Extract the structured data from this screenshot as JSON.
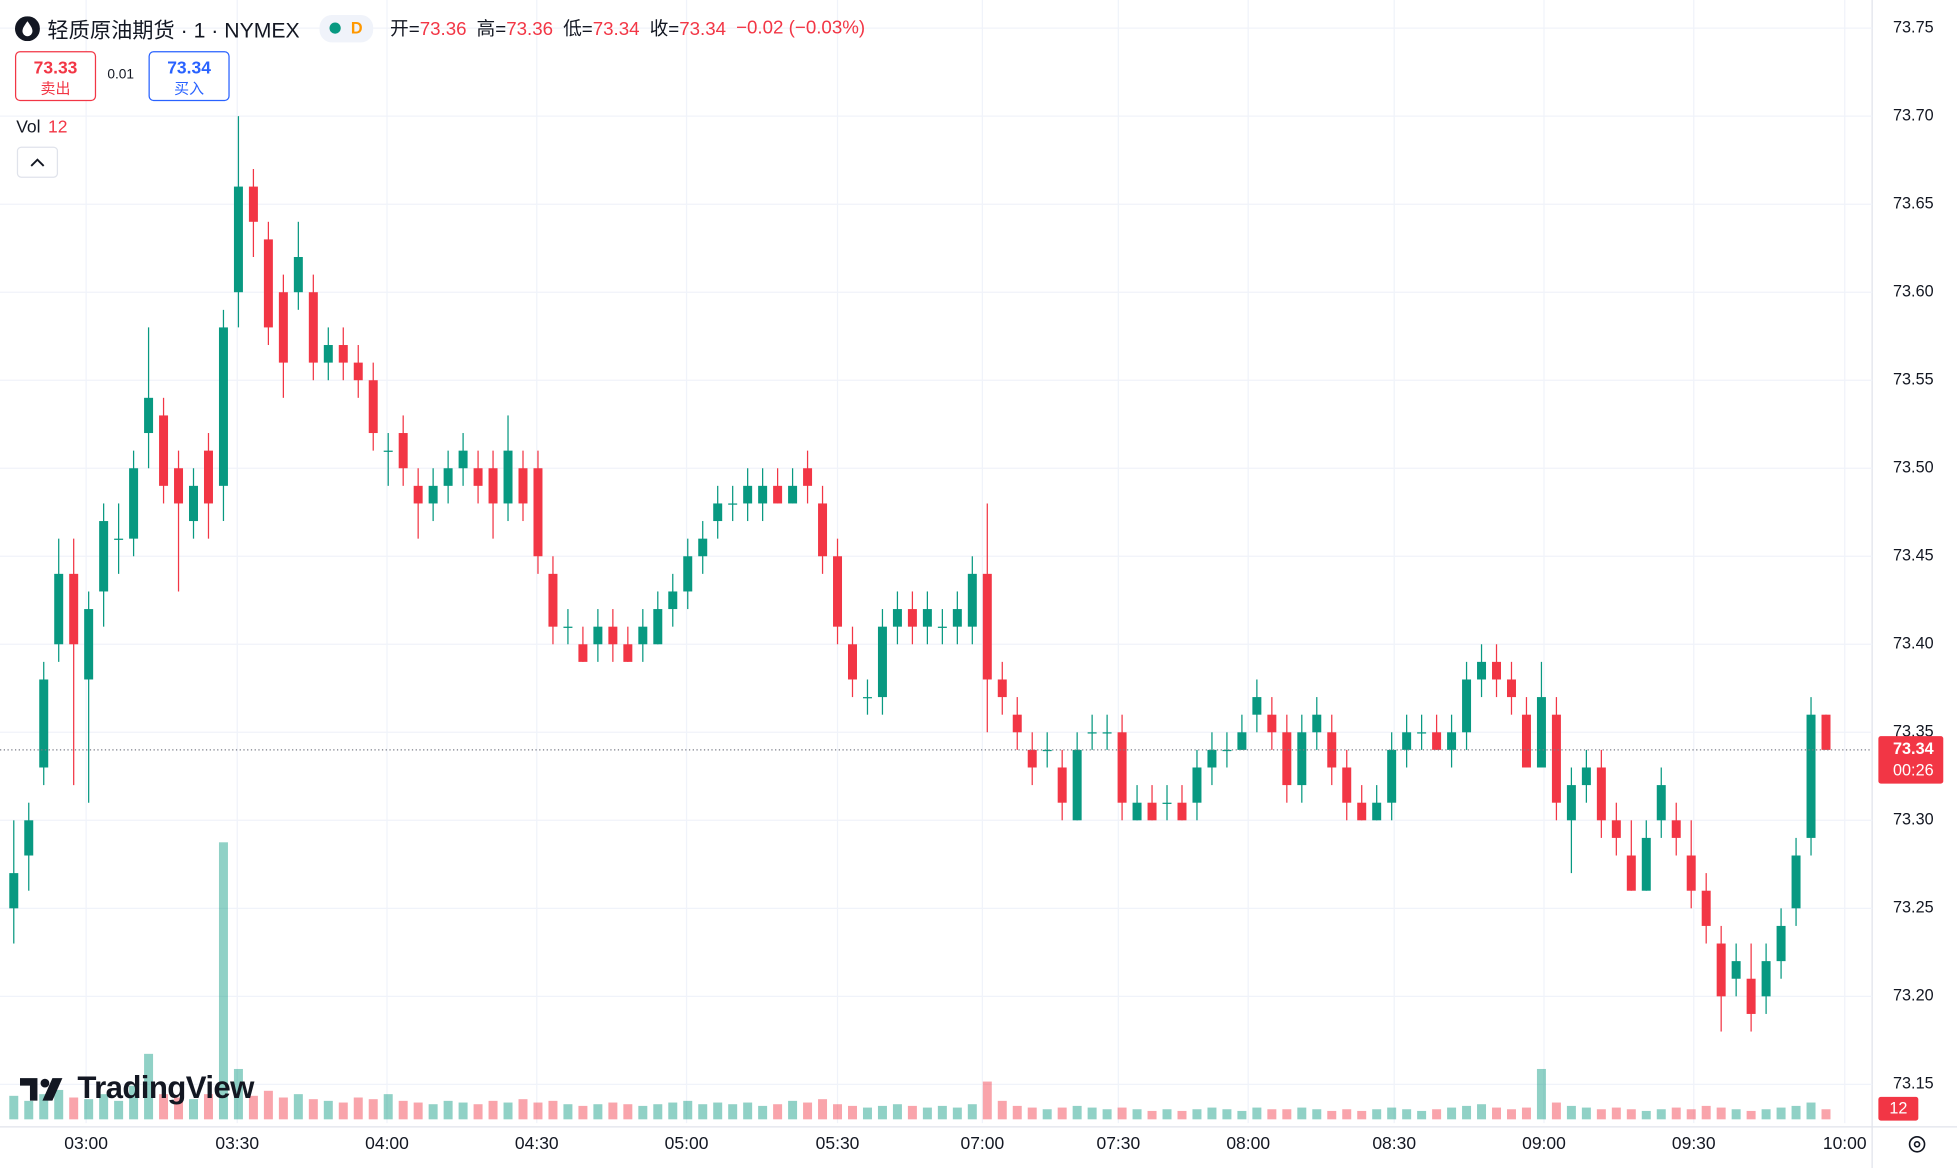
{
  "header": {
    "title": "轻质原油期货 · 1 · NYMEX",
    "session": "D",
    "ohlc_labels": [
      "开=",
      "高=",
      "低=",
      "收="
    ],
    "change": "−0.02 (−0.03%)",
    "bid": 73.33,
    "bid_label": "卖出",
    "spread": 0.01,
    "ask": 73.34,
    "ask_label": "买入",
    "vol_label": "Vol",
    "countdown": "00:26",
    "watermark": "TradingView"
  },
  "chart_data": {
    "type": "candlestick",
    "up_color": "#089981",
    "down_color": "#f23645",
    "open": [
      73.25,
      73.28,
      73.33,
      73.4,
      73.44,
      73.38,
      73.43,
      73.46,
      73.46,
      73.52,
      73.53,
      73.5,
      73.47,
      73.51,
      73.49,
      73.6,
      73.66,
      73.63,
      73.6,
      73.6,
      73.6,
      73.56,
      73.57,
      73.56,
      73.55,
      73.51,
      73.52,
      73.49,
      73.48,
      73.49,
      73.5,
      73.5,
      73.5,
      73.48,
      73.5,
      73.5,
      73.44,
      73.41,
      73.4,
      73.4,
      73.41,
      73.4,
      73.4,
      73.4,
      73.42,
      73.43,
      73.45,
      73.47,
      73.48,
      73.48,
      73.48,
      73.49,
      73.48,
      73.5,
      73.48,
      73.45,
      73.4,
      73.37,
      73.37,
      73.41,
      73.42,
      73.41,
      73.41,
      73.41,
      73.41,
      73.44,
      73.38,
      73.36,
      73.34,
      73.34,
      73.33,
      73.3,
      73.35,
      73.35,
      73.35,
      73.3,
      73.31,
      73.31,
      73.31,
      73.31,
      73.33,
      73.34,
      73.34,
      73.36,
      73.36,
      73.35,
      73.32,
      73.35,
      73.35,
      73.33,
      73.31,
      73.3,
      73.31,
      73.34,
      73.35,
      73.35,
      73.34,
      73.35,
      73.38,
      73.39,
      73.38,
      73.36,
      73.33,
      73.36,
      73.3,
      73.32,
      73.33,
      73.3,
      73.28,
      73.26,
      73.3,
      73.3,
      73.28,
      73.26,
      73.23,
      73.21,
      73.21,
      73.2,
      73.22,
      73.25,
      73.29,
      73.36
    ],
    "high": [
      73.3,
      73.31,
      73.39,
      73.46,
      73.46,
      73.43,
      73.48,
      73.48,
      73.51,
      73.58,
      73.54,
      73.51,
      73.5,
      73.52,
      73.59,
      73.7,
      73.67,
      73.64,
      73.61,
      73.64,
      73.61,
      73.58,
      73.58,
      73.57,
      73.56,
      73.52,
      73.53,
      73.5,
      73.5,
      73.51,
      73.52,
      73.51,
      73.51,
      73.53,
      73.51,
      73.51,
      73.45,
      73.42,
      73.41,
      73.42,
      73.42,
      73.41,
      73.42,
      73.43,
      73.44,
      73.46,
      73.47,
      73.49,
      73.49,
      73.5,
      73.5,
      73.5,
      73.5,
      73.51,
      73.49,
      73.46,
      73.41,
      73.38,
      73.42,
      73.43,
      73.43,
      73.43,
      73.42,
      73.43,
      73.45,
      73.48,
      73.39,
      73.37,
      73.35,
      73.35,
      73.34,
      73.35,
      73.36,
      73.36,
      73.36,
      73.32,
      73.32,
      73.32,
      73.32,
      73.34,
      73.35,
      73.35,
      73.36,
      73.38,
      73.37,
      73.36,
      73.36,
      73.37,
      73.36,
      73.34,
      73.32,
      73.32,
      73.35,
      73.36,
      73.36,
      73.36,
      73.36,
      73.39,
      73.4,
      73.4,
      73.39,
      73.37,
      73.39,
      73.37,
      73.33,
      73.34,
      73.34,
      73.31,
      73.3,
      73.3,
      73.33,
      73.31,
      73.3,
      73.27,
      73.24,
      73.23,
      73.23,
      73.23,
      73.25,
      73.29,
      73.37,
      73.36
    ],
    "low": [
      73.23,
      73.26,
      73.32,
      73.39,
      73.32,
      73.31,
      73.41,
      73.44,
      73.45,
      73.5,
      73.48,
      73.43,
      73.46,
      73.46,
      73.47,
      73.58,
      73.62,
      73.57,
      73.54,
      73.59,
      73.55,
      73.55,
      73.55,
      73.54,
      73.51,
      73.49,
      73.49,
      73.46,
      73.47,
      73.48,
      73.49,
      73.48,
      73.46,
      73.47,
      73.47,
      73.44,
      73.4,
      73.4,
      73.39,
      73.39,
      73.39,
      73.39,
      73.39,
      73.4,
      73.41,
      73.42,
      73.44,
      73.46,
      73.47,
      73.47,
      73.47,
      73.48,
      73.48,
      73.48,
      73.44,
      73.4,
      73.37,
      73.36,
      73.36,
      73.4,
      73.4,
      73.4,
      73.4,
      73.4,
      73.4,
      73.35,
      73.36,
      73.34,
      73.32,
      73.33,
      73.3,
      73.3,
      73.34,
      73.34,
      73.3,
      73.3,
      73.3,
      73.3,
      73.3,
      73.3,
      73.32,
      73.33,
      73.34,
      73.35,
      73.34,
      73.31,
      73.31,
      73.34,
      73.32,
      73.3,
      73.3,
      73.3,
      73.3,
      73.33,
      73.34,
      73.34,
      73.33,
      73.34,
      73.37,
      73.37,
      73.36,
      73.33,
      73.33,
      73.3,
      73.27,
      73.31,
      73.29,
      73.28,
      73.26,
      73.26,
      73.29,
      73.28,
      73.25,
      73.23,
      73.18,
      73.2,
      73.18,
      73.19,
      73.21,
      73.24,
      73.28,
      73.34
    ],
    "close": [
      73.27,
      73.3,
      73.38,
      73.44,
      73.4,
      73.42,
      73.47,
      73.46,
      73.5,
      73.54,
      73.49,
      73.48,
      73.49,
      73.48,
      73.58,
      73.66,
      73.64,
      73.58,
      73.56,
      73.62,
      73.56,
      73.57,
      73.56,
      73.55,
      73.52,
      73.51,
      73.5,
      73.48,
      73.49,
      73.5,
      73.51,
      73.49,
      73.48,
      73.51,
      73.48,
      73.45,
      73.41,
      73.41,
      73.39,
      73.41,
      73.4,
      73.39,
      73.41,
      73.42,
      73.43,
      73.45,
      73.46,
      73.48,
      73.48,
      73.49,
      73.49,
      73.48,
      73.49,
      73.49,
      73.45,
      73.41,
      73.38,
      73.37,
      73.41,
      73.42,
      73.41,
      73.42,
      73.41,
      73.42,
      73.44,
      73.38,
      73.37,
      73.35,
      73.33,
      73.34,
      73.31,
      73.34,
      73.35,
      73.35,
      73.31,
      73.31,
      73.3,
      73.31,
      73.3,
      73.33,
      73.34,
      73.34,
      73.35,
      73.37,
      73.35,
      73.32,
      73.35,
      73.36,
      73.33,
      73.31,
      73.3,
      73.31,
      73.34,
      73.35,
      73.35,
      73.34,
      73.35,
      73.38,
      73.39,
      73.38,
      73.37,
      73.33,
      73.37,
      73.31,
      73.32,
      73.33,
      73.3,
      73.29,
      73.26,
      73.29,
      73.32,
      73.29,
      73.26,
      73.24,
      73.2,
      73.22,
      73.19,
      73.22,
      73.24,
      73.28,
      73.36,
      73.34
    ],
    "volume": [
      28,
      22,
      30,
      35,
      26,
      24,
      30,
      22,
      40,
      78,
      30,
      26,
      24,
      30,
      330,
      60,
      28,
      34,
      26,
      30,
      24,
      22,
      20,
      26,
      24,
      30,
      22,
      20,
      18,
      22,
      20,
      18,
      22,
      20,
      24,
      20,
      22,
      18,
      16,
      18,
      20,
      18,
      16,
      18,
      20,
      22,
      18,
      20,
      18,
      20,
      16,
      18,
      22,
      20,
      24,
      18,
      16,
      14,
      16,
      18,
      16,
      14,
      16,
      14,
      18,
      45,
      22,
      16,
      14,
      12,
      14,
      16,
      14,
      12,
      14,
      12,
      10,
      12,
      10,
      12,
      14,
      12,
      10,
      14,
      12,
      12,
      14,
      12,
      10,
      12,
      10,
      12,
      14,
      12,
      10,
      12,
      14,
      16,
      18,
      14,
      12,
      14,
      60,
      20,
      16,
      14,
      12,
      14,
      12,
      10,
      12,
      14,
      12,
      16,
      14,
      12,
      10,
      12,
      14,
      16,
      20,
      12
    ],
    "xlim": [
      -0.92,
      124.08
    ],
    "xticks": [
      {
        "value": 4.83,
        "label": "03:00"
      },
      {
        "value": 14.92,
        "label": "03:30"
      },
      {
        "value": 24.92,
        "label": "04:00"
      },
      {
        "value": 34.92,
        "label": "04:30"
      },
      {
        "value": 44.92,
        "label": "05:00"
      },
      {
        "value": 55,
        "label": "05:30"
      },
      {
        "value": 64.67,
        "label": "07:00"
      },
      {
        "value": 73.75,
        "label": "07:30"
      },
      {
        "value": 82.42,
        "label": "08:00"
      },
      {
        "value": 92.17,
        "label": "08:30"
      },
      {
        "value": 102.17,
        "label": "09:00"
      },
      {
        "value": 112.17,
        "label": "09:30"
      },
      {
        "value": 122.25,
        "label": "10:00"
      }
    ],
    "ylim": [
      73.128,
      73.766
    ],
    "yticks": [
      {
        "value": 73.15,
        "label": "73.15"
      },
      {
        "value": 73.2,
        "label": "73.20"
      },
      {
        "value": 73.25,
        "label": "73.25"
      },
      {
        "value": 73.3,
        "label": "73.30"
      },
      {
        "value": 73.35,
        "label": "73.35"
      },
      {
        "value": 73.4,
        "label": "73.40"
      },
      {
        "value": 73.45,
        "label": "73.45"
      },
      {
        "value": 73.5,
        "label": "73.50"
      },
      {
        "value": 73.55,
        "label": "73.55"
      },
      {
        "value": 73.6,
        "label": "73.60"
      },
      {
        "value": 73.65,
        "label": "73.65"
      },
      {
        "value": 73.7,
        "label": "73.70"
      },
      {
        "value": 73.75,
        "label": "73.75"
      }
    ],
    "grid": true
  }
}
